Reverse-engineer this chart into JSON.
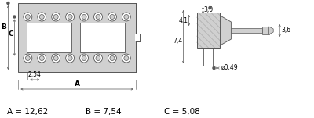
{
  "bg_color": "#ffffff",
  "text_color": "#000000",
  "dim_color": "#555555",
  "component_color": "#d0d0d0",
  "component_edge_color": "#555555",
  "labels": {
    "A_val": "A = 12,62",
    "B_val": "B = 7,54",
    "C_val": "C = 5,08",
    "A_lbl": "A",
    "B_lbl": "B",
    "C_lbl": "C",
    "dim_254": "2,54",
    "dim_41": "4,1",
    "dim_30": "3,0",
    "dim_36": "3,6",
    "dim_74": "7,4",
    "dim_049": "ø0,49"
  },
  "font_size_labels": 6.5,
  "font_size_dims": 5.5,
  "font_size_vals": 7.5
}
